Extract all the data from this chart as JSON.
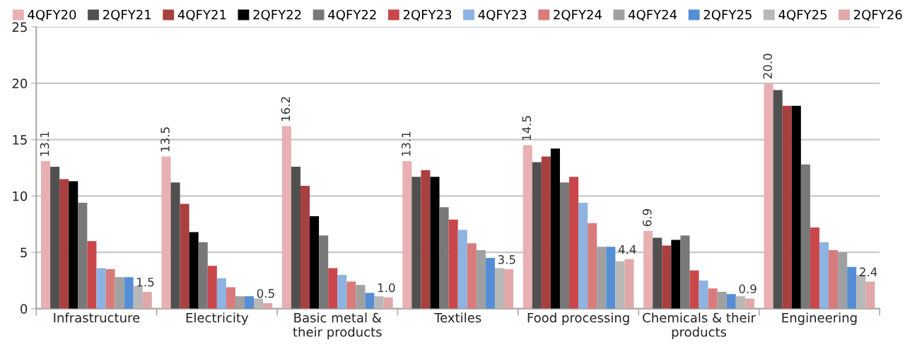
{
  "chart_data": {
    "type": "bar",
    "categories": [
      "Infrastructure",
      "Electricity",
      "Basic metal &\ntheir products",
      "Textiles",
      "Food processing",
      "Chemicals & their\nproducts",
      "Engineering"
    ],
    "series": [
      {
        "name": "4QFY20",
        "color": "#e8b0b2",
        "values": [
          13.1,
          13.5,
          16.2,
          13.1,
          14.5,
          6.9,
          20.0
        ],
        "value_labels": [
          "13.1",
          "13.5",
          "16.2",
          "13.1",
          "14.5",
          "6.9",
          "20.0"
        ]
      },
      {
        "name": "2QFY21",
        "color": "#505050",
        "values": [
          12.6,
          11.2,
          12.6,
          11.7,
          13.0,
          6.3,
          19.4
        ]
      },
      {
        "name": "4QFY21",
        "color": "#a94040",
        "values": [
          11.5,
          9.3,
          10.9,
          12.3,
          13.5,
          5.6,
          18.0
        ]
      },
      {
        "name": "2QFY22",
        "color": "#000000",
        "values": [
          11.3,
          6.8,
          8.2,
          11.7,
          14.2,
          6.1,
          18.0
        ]
      },
      {
        "name": "4QFY22",
        "color": "#787878",
        "values": [
          9.4,
          5.9,
          6.5,
          9.0,
          11.2,
          6.5,
          12.8
        ]
      },
      {
        "name": "2QFY23",
        "color": "#c9474b",
        "values": [
          6.0,
          3.8,
          3.6,
          7.9,
          11.7,
          3.4,
          7.2
        ]
      },
      {
        "name": "4QFY23",
        "color": "#8db3e2",
        "values": [
          3.6,
          2.7,
          3.0,
          7.0,
          9.4,
          2.5,
          5.9
        ]
      },
      {
        "name": "2QFY24",
        "color": "#d97b7b",
        "values": [
          3.5,
          1.9,
          2.4,
          5.8,
          7.6,
          1.8,
          5.2
        ]
      },
      {
        "name": "4QFY24",
        "color": "#a0a0a0",
        "values": [
          2.8,
          1.1,
          2.1,
          5.2,
          5.5,
          1.5,
          5.0
        ]
      },
      {
        "name": "2QFY25",
        "color": "#558ed5",
        "values": [
          2.8,
          1.1,
          1.4,
          4.5,
          5.5,
          1.3,
          3.7
        ]
      },
      {
        "name": "4QFY25",
        "color": "#b8b8b8",
        "values": [
          2.0,
          0.9,
          1.1,
          3.6,
          4.2,
          1.1,
          3.0
        ]
      },
      {
        "name": "2QFY26",
        "color": "#e0a8a8",
        "values": [
          1.5,
          0.5,
          1.0,
          3.5,
          4.4,
          0.9,
          2.4
        ],
        "value_labels": [
          "1.5",
          "0.5",
          "1.0",
          "3.5",
          "4.4",
          "0.9",
          "2.4"
        ]
      }
    ],
    "ylim": [
      0,
      25
    ],
    "yticks": [
      0,
      5,
      10,
      15,
      20,
      25
    ],
    "grid": "y",
    "legend": "top"
  }
}
